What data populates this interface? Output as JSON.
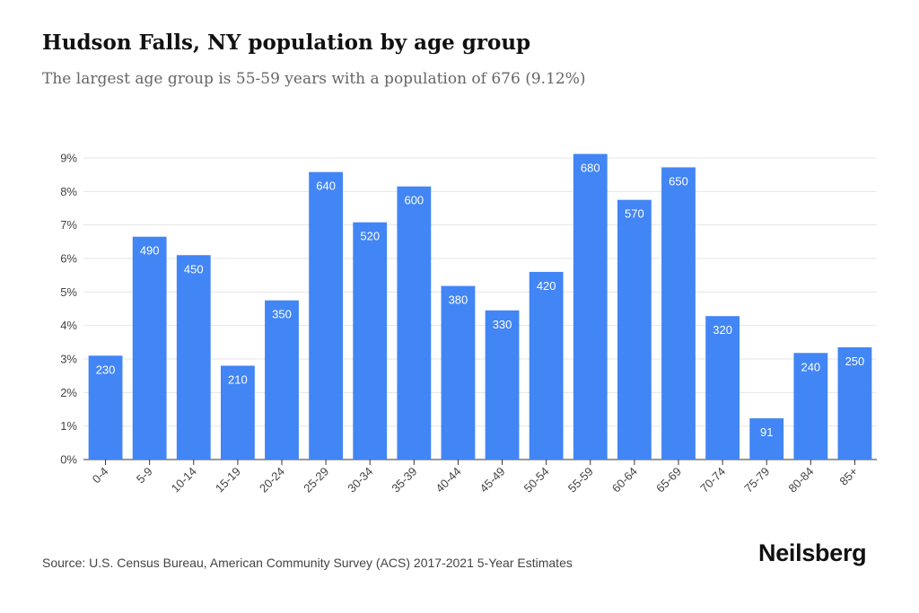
{
  "chart_data": {
    "type": "bar",
    "title": "Hudson Falls, NY population by age group",
    "subtitle": "The largest age group is 55-59 years with a population of 676 (9.12%)",
    "categories": [
      "0-4",
      "5-9",
      "10-14",
      "15-19",
      "20-24",
      "25-29",
      "30-34",
      "35-39",
      "40-44",
      "45-49",
      "50-54",
      "55-59",
      "60-64",
      "65-69",
      "70-74",
      "75-79",
      "80-84",
      "85+"
    ],
    "series": [
      {
        "values": [
          3.1,
          6.65,
          6.1,
          2.8,
          4.75,
          8.58,
          7.08,
          8.15,
          5.18,
          4.45,
          5.6,
          9.12,
          7.75,
          8.72,
          4.28,
          1.23,
          3.18,
          3.35
        ],
        "data_labels": [
          "230",
          "490",
          "450",
          "210",
          "350",
          "640",
          "520",
          "600",
          "380",
          "330",
          "420",
          "680",
          "570",
          "650",
          "320",
          "91",
          "240",
          "250"
        ]
      }
    ],
    "xlabel": "",
    "ylabel": "",
    "ylim": [
      0,
      9
    ],
    "yticks": [
      "0%",
      "1%",
      "2%",
      "3%",
      "4%",
      "5%",
      "6%",
      "7%",
      "8%",
      "9%"
    ],
    "grid": true,
    "colors": {
      "bar": "#4285f4",
      "grid": "#e6e6e6",
      "axis": "#333333"
    }
  },
  "footer": {
    "source": "Source: U.S. Census Bureau, American Community Survey (ACS) 2017-2021 5-Year Estimates",
    "brand": "Neilsberg"
  }
}
